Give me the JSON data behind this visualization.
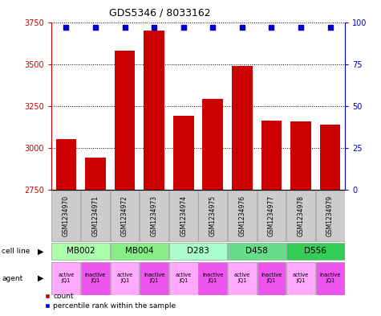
{
  "title": "GDS5346 / 8033162",
  "samples": [
    "GSM1234970",
    "GSM1234971",
    "GSM1234972",
    "GSM1234973",
    "GSM1234974",
    "GSM1234975",
    "GSM1234976",
    "GSM1234977",
    "GSM1234978",
    "GSM1234979"
  ],
  "counts": [
    3050,
    2940,
    3580,
    3700,
    3190,
    3290,
    3490,
    3160,
    3155,
    3140
  ],
  "percentiles": [
    97,
    97,
    97,
    97,
    97,
    97,
    97,
    97,
    97,
    97
  ],
  "ylim_left": [
    2750,
    3750
  ],
  "ylim_right": [
    0,
    100
  ],
  "yticks_left": [
    2750,
    3000,
    3250,
    3500,
    3750
  ],
  "yticks_right": [
    0,
    25,
    50,
    75,
    100
  ],
  "cell_lines": [
    {
      "label": "MB002",
      "cols": [
        0,
        1
      ],
      "color": "#aaffaa"
    },
    {
      "label": "MB004",
      "cols": [
        2,
        3
      ],
      "color": "#88ee88"
    },
    {
      "label": "D283",
      "cols": [
        4,
        5
      ],
      "color": "#aaffcc"
    },
    {
      "label": "D458",
      "cols": [
        6,
        7
      ],
      "color": "#66dd88"
    },
    {
      "label": "D556",
      "cols": [
        8,
        9
      ],
      "color": "#33cc55"
    }
  ],
  "agents": [
    "active\nJQ1",
    "inactive\nJQ1",
    "active\nJQ1",
    "inactive\nJQ1",
    "active\nJQ1",
    "inactive\nJQ1",
    "active\nJQ1",
    "inactive\nJQ1",
    "active\nJQ1",
    "inactive\nJQ1"
  ],
  "agent_colors": [
    "#ffaaff",
    "#ee55ee",
    "#ffaaff",
    "#ee55ee",
    "#ffaaff",
    "#ee55ee",
    "#ffaaff",
    "#ee55ee",
    "#ffaaff",
    "#ee55ee"
  ],
  "bar_color": "#cc0000",
  "dot_color": "#0000cc",
  "sample_box_color": "#cccccc",
  "left_label_color": "#cc0000",
  "right_label_color": "#0000cc"
}
